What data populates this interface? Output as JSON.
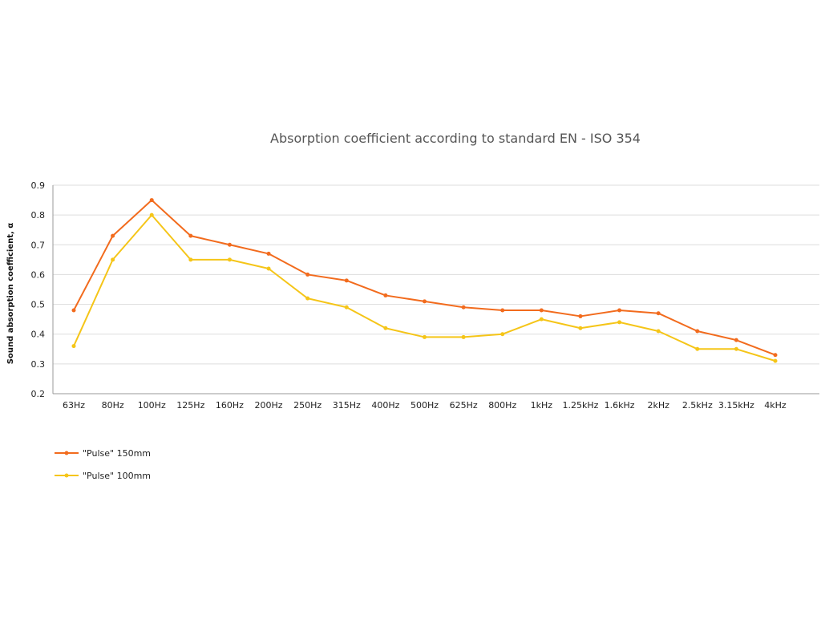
{
  "colors": {
    "background": "#ffffff",
    "grid": "#dddddd",
    "axis": "#999999"
  },
  "chart_data": {
    "type": "line",
    "title": "Absorption coefficient according to standard EN - ISO 354",
    "xlabel": "",
    "ylabel": "Sound absorption coefficient, α",
    "ylim": [
      0.2,
      0.9
    ],
    "yticks": [
      "0.2",
      "0.3",
      "0.4",
      "0.5",
      "0.6",
      "0.7",
      "0.8",
      "0.9"
    ],
    "grid": true,
    "legend_position": "bottom-left",
    "categories": [
      "63Hz",
      "80Hz",
      "100Hz",
      "125Hz",
      "160Hz",
      "200Hz",
      "250Hz",
      "315Hz",
      "400Hz",
      "500Hz",
      "625Hz",
      "800Hz",
      "1kHz",
      "1.25kHz",
      "1.6kHz",
      "2kHz",
      "2.5kHz",
      "3.15kHz",
      "4kHz"
    ],
    "series": [
      {
        "name": "\"Pulse\" 150mm",
        "color": "#f26b1d",
        "values": [
          0.48,
          0.73,
          0.85,
          0.73,
          0.7,
          0.67,
          0.6,
          0.58,
          0.53,
          0.51,
          0.49,
          0.48,
          0.48,
          0.46,
          0.48,
          0.47,
          0.41,
          0.38,
          0.33
        ]
      },
      {
        "name": "\"Pulse\" 100mm",
        "color": "#f5c518",
        "values": [
          0.36,
          0.65,
          0.8,
          0.65,
          0.65,
          0.62,
          0.52,
          0.49,
          0.42,
          0.39,
          0.39,
          0.4,
          0.45,
          0.42,
          0.44,
          0.41,
          0.35,
          0.35,
          0.31
        ]
      }
    ]
  }
}
